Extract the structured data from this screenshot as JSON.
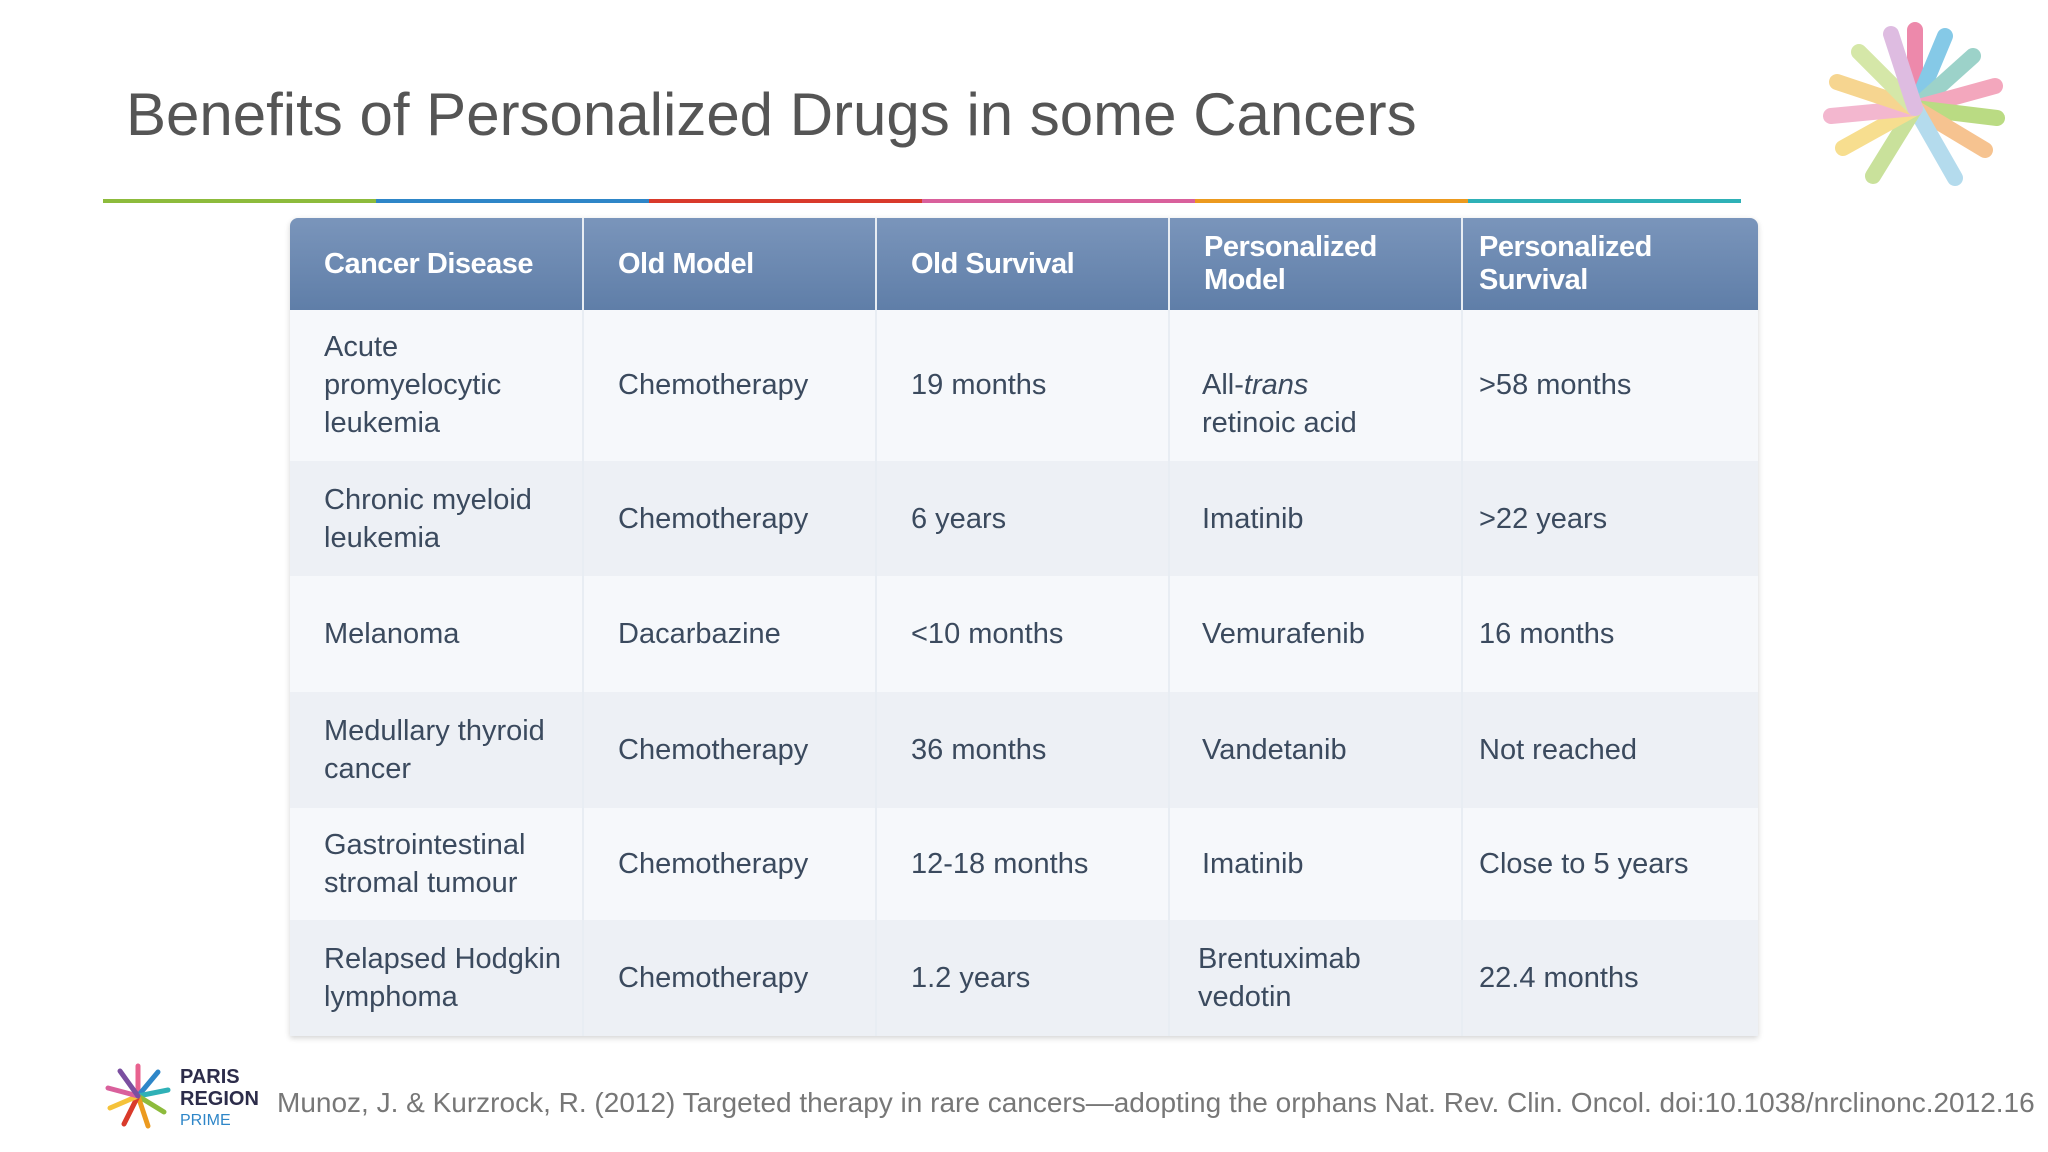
{
  "slide": {
    "title": "Benefits of Personalized Drugs in some Cancers",
    "rule_colors": [
      "#8dbb3c",
      "#2e86c8",
      "#d93a2b",
      "#d9609c",
      "#ec9a1f",
      "#2fb1b7"
    ]
  },
  "table": {
    "headers": [
      "Cancer Disease",
      "Old Model",
      "Old Survival",
      "Personalized Model",
      "Personalized Survival"
    ],
    "rows": [
      {
        "disease": "Acute promyelocytic leukemia",
        "old_model": "Chemotherapy",
        "old_survival": "19 months",
        "pm_prefix": "All-",
        "pm_italic": "trans",
        "pm_suffix": "retinoic acid",
        "ps": ">58 months"
      },
      {
        "disease": "Chronic myeloid leukemia",
        "old_model": "Chemotherapy",
        "old_survival": "6 years",
        "pm_prefix": "Imatinib",
        "pm_italic": "",
        "pm_suffix": "",
        "ps": ">22 years"
      },
      {
        "disease": "Melanoma",
        "old_model": "Dacarbazine",
        "old_survival": "<10 months",
        "pm_prefix": "Vemurafenib",
        "pm_italic": "",
        "pm_suffix": "",
        "ps": "16 months"
      },
      {
        "disease": "Medullary thyroid cancer",
        "old_model": "Chemotherapy",
        "old_survival": "36 months",
        "pm_prefix": "Vandetanib",
        "pm_italic": "",
        "pm_suffix": "",
        "ps": "Not reached"
      },
      {
        "disease": "Gastrointestinal stromal tumour",
        "old_model": "Chemotherapy",
        "old_survival": "12-18 months",
        "pm_prefix": "Imatinib",
        "pm_italic": "",
        "pm_suffix": "",
        "ps": "Close to 5 years"
      },
      {
        "disease": "Relapsed Hodgkin lymphoma",
        "old_model": "Chemotherapy",
        "old_survival": "1.2 years",
        "pm_prefix": "Brentuximab vedotin",
        "pm_italic": "",
        "pm_suffix": "",
        "ps": "22.4 months"
      }
    ]
  },
  "footer": {
    "logo_line1": "PARIS",
    "logo_line2": "REGION",
    "logo_line3": "PRIME",
    "citation": "Munoz, J. & Kurzrock, R. (2012) Targeted therapy in rare cancers—adopting the orphans Nat. Rev. Clin. Oncol. doi:10.1038/nrclinonc.2012.16"
  }
}
